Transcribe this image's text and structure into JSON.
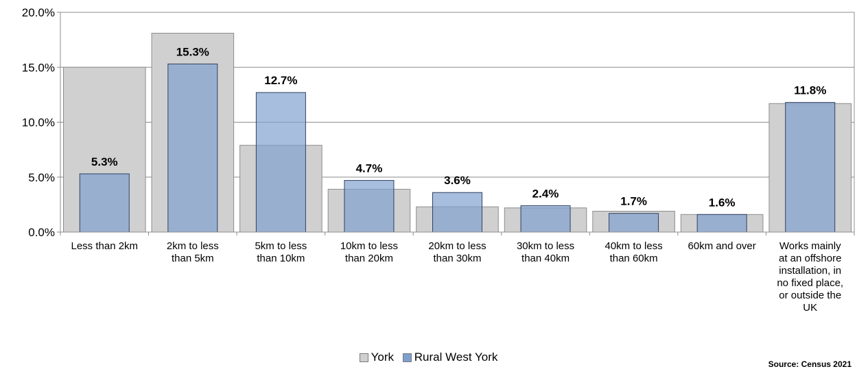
{
  "chart_data": {
    "type": "bar",
    "categories": [
      "Less than 2km",
      "2km to less than 5km",
      "5km to less than 10km",
      "10km to less than 20km",
      "20km to less than 30km",
      "30km to less than 40km",
      "40km to less than 60km",
      "60km and over",
      "Works mainly at an offshore installation, in no fixed place, or outside the UK"
    ],
    "category_lines": [
      [
        "Less than 2km"
      ],
      [
        "2km to less",
        "than 5km"
      ],
      [
        "5km to less",
        "than 10km"
      ],
      [
        "10km to less",
        "than 20km"
      ],
      [
        "20km to less",
        "than 30km"
      ],
      [
        "30km to less",
        "than 40km"
      ],
      [
        "40km to less",
        "than 60km"
      ],
      [
        "60km and over"
      ],
      [
        "Works mainly",
        "at an offshore",
        "installation, in",
        "no fixed place,",
        "or outside the",
        "UK"
      ]
    ],
    "series": [
      {
        "name": "York",
        "values": [
          15.0,
          18.1,
          7.9,
          3.9,
          2.3,
          2.2,
          1.9,
          1.6,
          11.7
        ],
        "color": "#d0d0d0",
        "stroke": "#8c8c8c"
      },
      {
        "name": "Rural West York",
        "values": [
          5.3,
          15.3,
          12.7,
          4.7,
          3.6,
          2.4,
          1.7,
          1.6,
          11.8
        ],
        "color": "#7f9fd0",
        "stroke": "#2f3f5f"
      }
    ],
    "data_labels": [
      "5.3%",
      "15.3%",
      "12.7%",
      "4.7%",
      "3.6%",
      "2.4%",
      "1.7%",
      "1.6%",
      "11.8%"
    ],
    "y_ticks": [
      "0.0%",
      "5.0%",
      "10.0%",
      "15.0%",
      "20.0%"
    ],
    "ylim": [
      0,
      20
    ],
    "grid": true,
    "legend_position": "bottom",
    "title": "",
    "xlabel": "",
    "ylabel": ""
  },
  "source": "Source: Census 2021"
}
